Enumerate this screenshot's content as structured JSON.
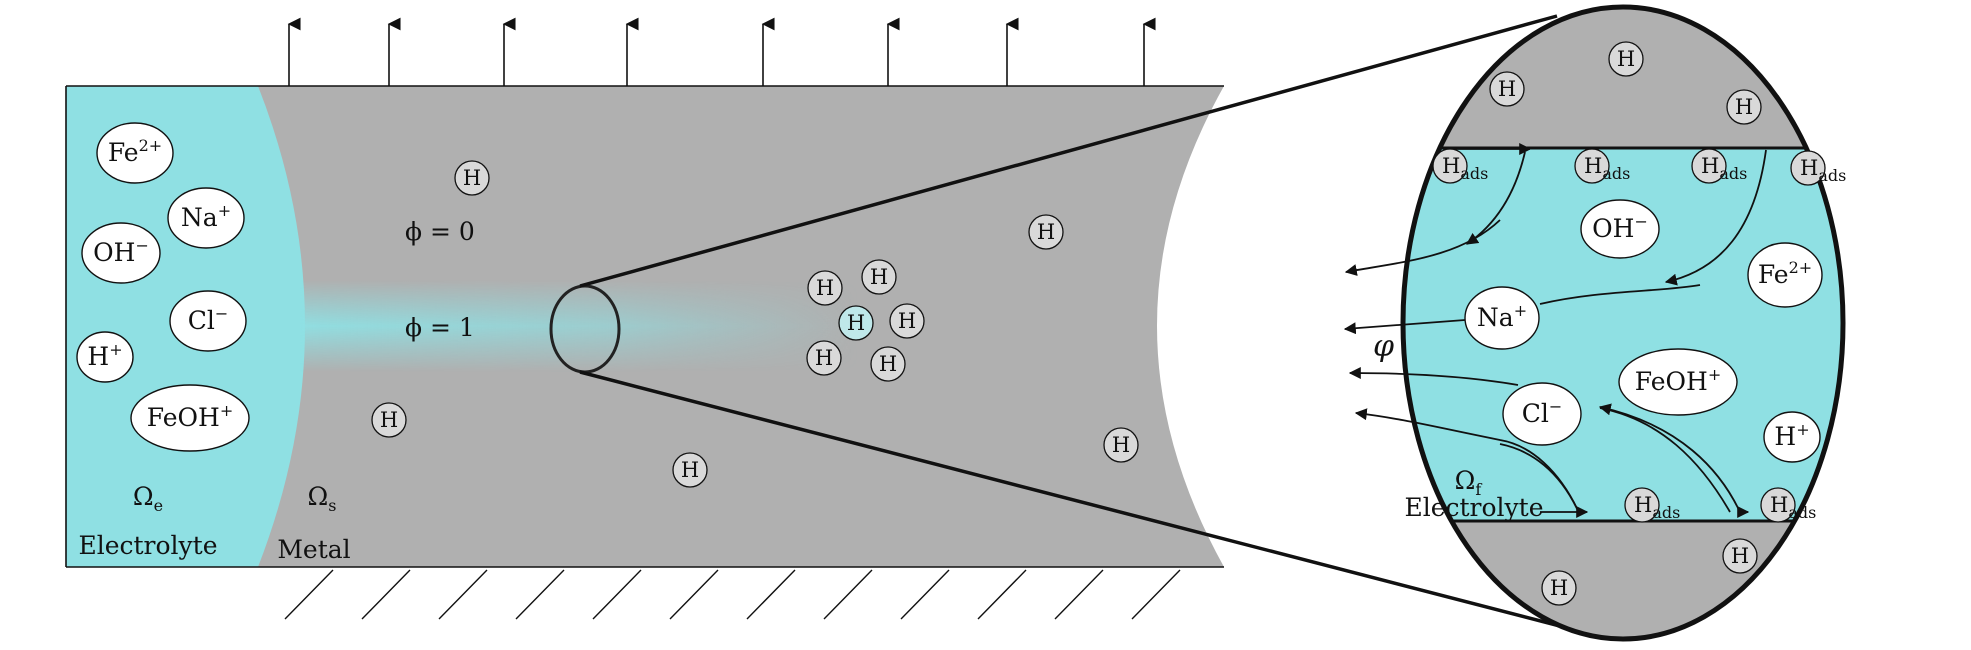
{
  "colors": {
    "electrolyte": "#8fe0e3",
    "metal": "#b0b0b0",
    "h_atom": "#d9d9d9",
    "stroke": "#111111"
  },
  "left_electrolyte": {
    "ions": [
      {
        "base": "Fe",
        "sup": "2+"
      },
      {
        "base": "Na",
        "sup": "+"
      },
      {
        "base": "OH",
        "sup": "−"
      },
      {
        "base": "Cl",
        "sup": "−"
      },
      {
        "base": "H",
        "sup": "+"
      },
      {
        "base": "FeOH",
        "sup": "+"
      }
    ],
    "omega": {
      "base": "Ω",
      "sub": "e"
    },
    "label": "Electrolyte"
  },
  "metal": {
    "omega": {
      "base": "Ω",
      "sub": "s"
    },
    "label": "Metal",
    "phi_0": "ϕ = 0",
    "phi_1": "ϕ = 1",
    "h_atom": "H"
  },
  "zoom": {
    "ions": [
      {
        "base": "OH",
        "sup": "−"
      },
      {
        "base": "Fe",
        "sup": "2+"
      },
      {
        "base": "Na",
        "sup": "+"
      },
      {
        "base": "FeOH",
        "sup": "+"
      },
      {
        "base": "Cl",
        "sup": "−"
      },
      {
        "base": "H",
        "sup": "+"
      }
    ],
    "h_ads": {
      "base": "H",
      "sub": "ads"
    },
    "potential": "φ",
    "omega": {
      "base": "Ω",
      "sub": "f"
    },
    "label": "Electrolyte"
  }
}
